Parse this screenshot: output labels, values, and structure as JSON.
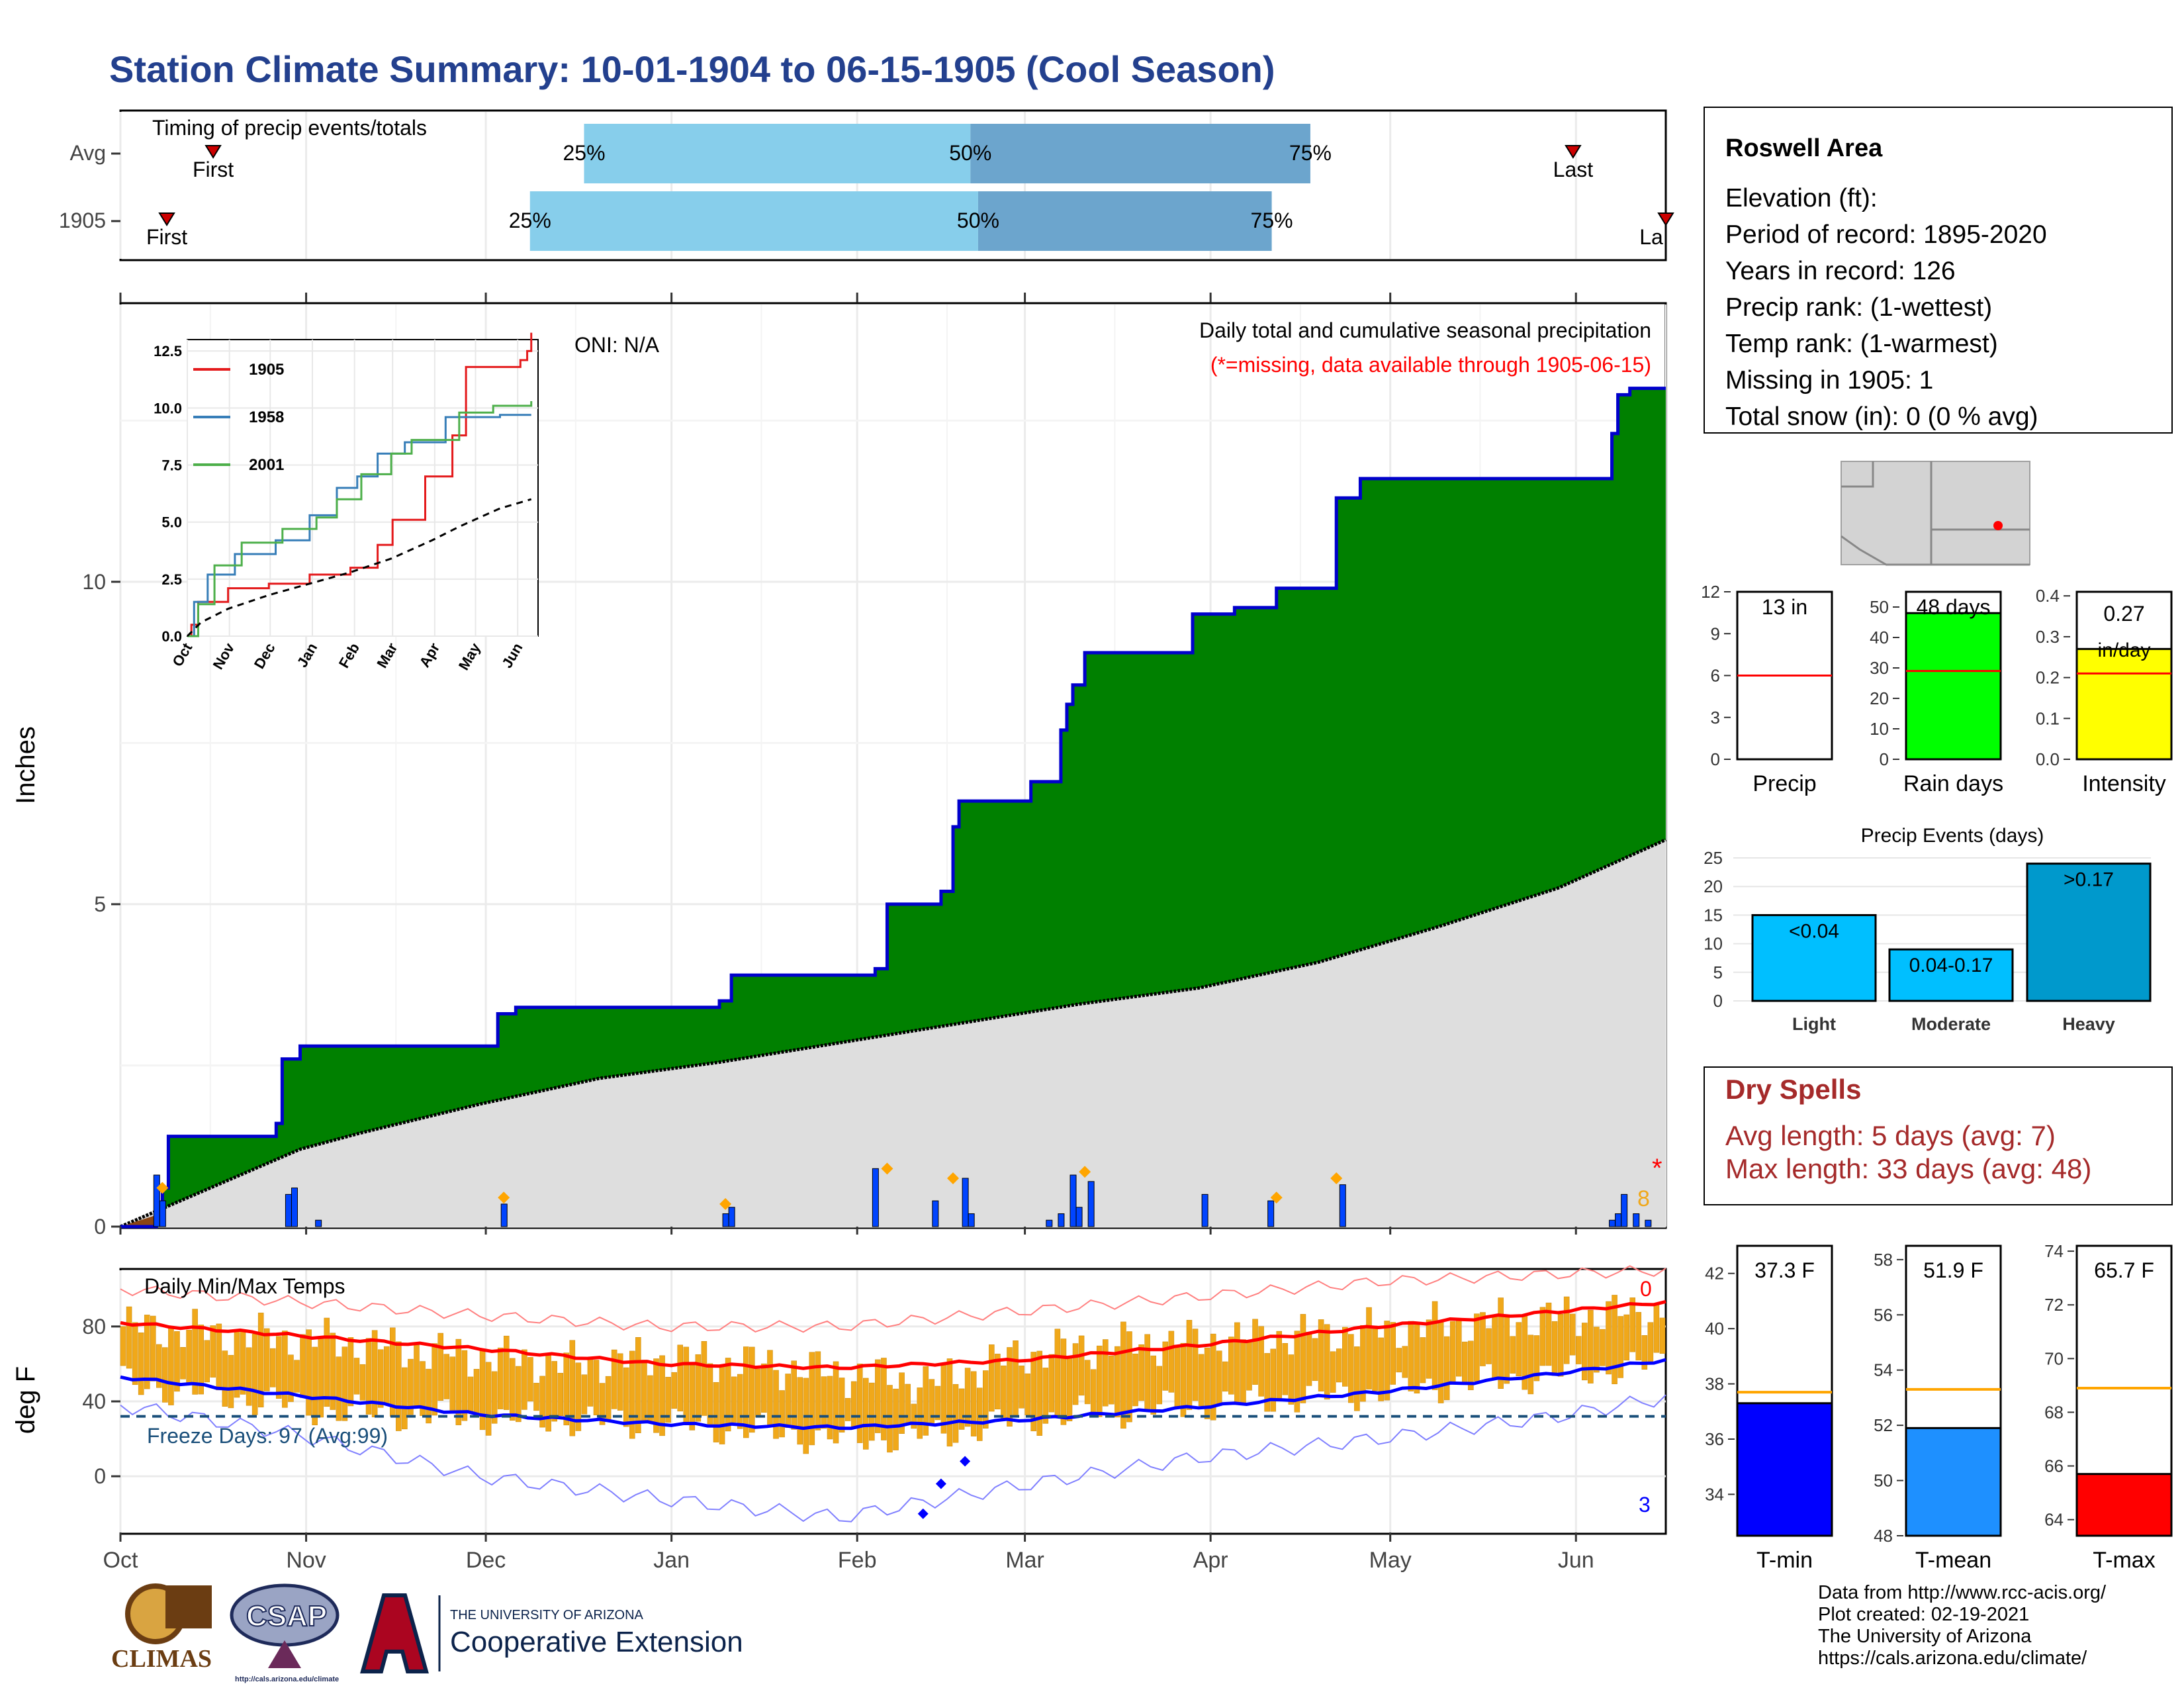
{
  "title": "Station Climate Summary: 10-01-1904 to 06-15-1905 (Cool Season)",
  "colors": {
    "title": "#23408e",
    "green": "#008000",
    "cum_line": "#0000cc",
    "avg_fill": "#dedede",
    "bar_light": "#87ceeb",
    "bar_dark": "#6ca5cd",
    "tmin_blue": "#0000ff",
    "tmean_blue": "#1e90ff",
    "tmax_red": "#ff0000",
    "temp_bar": "#f0a81a",
    "dry_spell": "#a52a2a",
    "rain_days_green": "#00ff00",
    "intensity_yellow": "#ffff00",
    "events_blue": "#00bfff",
    "events_heavy": "#0099cc",
    "freeze_line": "#1a4f7a"
  },
  "timing": {
    "label": "Timing of precip events/totals",
    "rows": [
      {
        "name": "Avg",
        "first_label": "First",
        "last_label": "Last",
        "q25": "25%",
        "q50": "50%",
        "q75": "75%",
        "first": 0.06,
        "last": 0.94,
        "p25": 0.3,
        "p50": 0.55,
        "p75": 0.77
      },
      {
        "name": "1905",
        "first_label": "First",
        "last_label": "La",
        "q25": "25%",
        "q50": "50%",
        "q75": "75%",
        "first": 0.03,
        "last": 1.0,
        "p25": 0.265,
        "p50": 0.555,
        "p75": 0.745
      }
    ]
  },
  "info_box": {
    "station": "Roswell Area",
    "lines": [
      "Elevation (ft):",
      "Period of record: 1895-2020",
      "Years in record: 126",
      "Precip rank:  (1-wettest)",
      "Temp rank:  (1-warmest)",
      "Missing in 1905: 1",
      "Total snow (in): 0 (0 % avg)"
    ]
  },
  "summary_bars": [
    {
      "label": "Precip",
      "value_text": "13 in",
      "value": 13,
      "avg": 6,
      "ymax": 12,
      "ticks": [
        "0",
        "3",
        "6",
        "9",
        "12"
      ],
      "color": "#ffffff"
    },
    {
      "label": "Rain days",
      "value_text": "48 days",
      "value": 48,
      "avg": 29,
      "ymax": 55,
      "ticks": [
        "0",
        "10",
        "20",
        "30",
        "40",
        "50"
      ],
      "color": "#00ff00"
    },
    {
      "label": "Intensity",
      "value_text": "0.27",
      "value_text2": "in/day",
      "value": 0.27,
      "avg": 0.21,
      "ymax": 0.41,
      "ticks": [
        "0.0",
        "0.1",
        "0.2",
        "0.3",
        "0.4"
      ],
      "color": "#ffff00"
    }
  ],
  "precip_events": {
    "title": "Precip Events (days)",
    "ticks": [
      "0",
      "5",
      "10",
      "15",
      "20",
      "25"
    ],
    "bars": [
      {
        "label": "Light",
        "text": "<0.04",
        "value": 15,
        "color": "#00bfff"
      },
      {
        "label": "Moderate",
        "text": "0.04-0.17",
        "value": 9,
        "color": "#00bfff"
      },
      {
        "label": "Heavy",
        "text": ">0.17",
        "value": 24,
        "color": "#0099cc"
      }
    ]
  },
  "dry_spells": {
    "title": "Dry Spells",
    "avg_line": "Avg length: 5 days (avg: 7)",
    "max_line": "Max length: 33 days (avg: 48)"
  },
  "temp_bars": [
    {
      "label": "T-min",
      "value_text": "37.3 F",
      "value": 37.3,
      "avg": 37.7,
      "ymin": 32.5,
      "ymax": 43,
      "ticks": [
        "34",
        "36",
        "38",
        "40",
        "42"
      ],
      "tickvals": [
        34,
        36,
        38,
        40,
        42
      ],
      "color": "#0000ff"
    },
    {
      "label": "T-mean",
      "value_text": "51.9 F",
      "value": 51.9,
      "avg": 53.3,
      "ymin": 48,
      "ymax": 58.5,
      "ticks": [
        "48",
        "50",
        "52",
        "54",
        "56",
        "58"
      ],
      "tickvals": [
        48,
        50,
        52,
        54,
        56,
        58
      ],
      "color": "#1e90ff"
    },
    {
      "label": "T-max",
      "value_text": "65.7 F",
      "value": 65.7,
      "avg": 68.9,
      "ymin": 63.4,
      "ymax": 74.2,
      "ticks": [
        "64",
        "66",
        "68",
        "70",
        "72",
        "74"
      ],
      "tickvals": [
        64,
        66,
        68,
        70,
        72,
        74
      ],
      "color": "#ff0000"
    }
  ],
  "chart_data": [
    {
      "type": "area",
      "title": "Daily total and cumulative seasonal precipitation",
      "subtitle": "(*=missing, data available through 1905-06-15)",
      "annotation": "ONI: N/A",
      "ylabel": "Inches",
      "ylim": [
        0,
        14.3
      ],
      "yticks": [
        0,
        5,
        10
      ],
      "missing_marker": "*",
      "missing_count_label": "8",
      "x_days": 258,
      "cumulative_1905": [
        [
          0,
          0.0
        ],
        [
          6,
          0.1
        ],
        [
          7,
          0.6
        ],
        [
          8,
          1.4
        ],
        [
          26,
          1.6
        ],
        [
          27,
          2.6
        ],
        [
          30,
          2.8
        ],
        [
          63,
          3.3
        ],
        [
          66,
          3.4
        ],
        [
          72,
          3.4
        ],
        [
          100,
          3.5
        ],
        [
          102,
          3.9
        ],
        [
          126,
          4.0
        ],
        [
          128,
          5.0
        ],
        [
          137,
          5.2
        ],
        [
          139,
          6.2
        ],
        [
          140,
          6.6
        ],
        [
          152,
          6.9
        ],
        [
          157,
          7.7
        ],
        [
          158,
          8.1
        ],
        [
          159,
          8.4
        ],
        [
          161,
          8.9
        ],
        [
          179,
          9.5
        ],
        [
          186,
          9.6
        ],
        [
          193,
          9.9
        ],
        [
          203,
          11.3
        ],
        [
          207,
          11.6
        ],
        [
          238,
          11.6
        ],
        [
          249,
          12.3
        ],
        [
          250,
          12.9
        ],
        [
          252,
          13.0
        ],
        [
          254,
          13.0
        ],
        [
          258,
          13.0
        ]
      ],
      "cumulative_avg": [
        [
          0,
          0.0
        ],
        [
          10,
          0.4
        ],
        [
          20,
          0.8
        ],
        [
          30,
          1.2
        ],
        [
          40,
          1.45
        ],
        [
          60,
          1.9
        ],
        [
          80,
          2.3
        ],
        [
          100,
          2.55
        ],
        [
          120,
          2.85
        ],
        [
          140,
          3.15
        ],
        [
          160,
          3.45
        ],
        [
          180,
          3.7
        ],
        [
          200,
          4.1
        ],
        [
          220,
          4.65
        ],
        [
          240,
          5.25
        ],
        [
          258,
          6.0
        ]
      ],
      "daily_bars": [
        [
          6,
          0.8
        ],
        [
          7,
          0.4
        ],
        [
          28,
          0.5
        ],
        [
          29,
          0.6
        ],
        [
          33,
          0.1
        ],
        [
          64,
          0.35
        ],
        [
          101,
          0.2
        ],
        [
          102,
          0.3
        ],
        [
          126,
          0.9
        ],
        [
          136,
          0.4
        ],
        [
          141,
          0.75
        ],
        [
          142,
          0.2
        ],
        [
          155,
          0.1
        ],
        [
          157,
          0.2
        ],
        [
          159,
          0.8
        ],
        [
          160,
          0.3
        ],
        [
          162,
          0.7
        ],
        [
          181,
          0.5
        ],
        [
          192,
          0.4
        ],
        [
          204,
          0.65
        ],
        [
          249,
          0.1
        ],
        [
          250,
          0.2
        ],
        [
          251,
          0.5
        ],
        [
          253,
          0.2
        ],
        [
          255,
          0.1
        ]
      ],
      "orange_markers": [
        [
          7,
          0.6
        ],
        [
          64,
          0.45
        ],
        [
          101,
          0.35
        ],
        [
          128,
          0.9
        ],
        [
          139,
          0.75
        ],
        [
          161,
          0.85
        ],
        [
          193,
          0.45
        ],
        [
          203,
          0.75
        ]
      ]
    },
    {
      "type": "line",
      "title": "",
      "series": [
        {
          "name": "1905",
          "color": "#e41a1c",
          "values": [
            [
              0,
              0.0
            ],
            [
              3,
              0.5
            ],
            [
              8,
              1.5
            ],
            [
              30,
              2.1
            ],
            [
              60,
              2.3
            ],
            [
              90,
              2.7
            ],
            [
              120,
              3.0
            ],
            [
              140,
              4.0
            ],
            [
              151,
              5.1
            ],
            [
              175,
              7.0
            ],
            [
              195,
              8.8
            ],
            [
              205,
              11.8
            ],
            [
              245,
              12.1
            ],
            [
              250,
              12.5
            ],
            [
              253,
              13.3
            ]
          ]
        },
        {
          "name": "1958",
          "color": "#377eb8",
          "values": [
            [
              0,
              0.0
            ],
            [
              5,
              1.5
            ],
            [
              15,
              2.7
            ],
            [
              35,
              3.6
            ],
            [
              65,
              4.2
            ],
            [
              90,
              5.3
            ],
            [
              110,
              6.5
            ],
            [
              125,
              7.0
            ],
            [
              140,
              8.0
            ],
            [
              160,
              8.5
            ],
            [
              190,
              9.6
            ],
            [
              230,
              9.7
            ],
            [
              253,
              9.7
            ]
          ]
        },
        {
          "name": "2001",
          "color": "#4daf4a",
          "values": [
            [
              0,
              0.0
            ],
            [
              8,
              1.4
            ],
            [
              20,
              3.1
            ],
            [
              40,
              4.1
            ],
            [
              70,
              4.7
            ],
            [
              95,
              5.2
            ],
            [
              110,
              6.0
            ],
            [
              128,
              7.1
            ],
            [
              150,
              8.0
            ],
            [
              165,
              8.6
            ],
            [
              200,
              9.8
            ],
            [
              225,
              10.1
            ],
            [
              253,
              10.3
            ]
          ]
        },
        {
          "name": "",
          "color": "#000000",
          "dashed": true,
          "values": [
            [
              0,
              0.0
            ],
            [
              10,
              0.6
            ],
            [
              30,
              1.2
            ],
            [
              60,
              1.8
            ],
            [
              90,
              2.3
            ],
            [
              120,
              2.8
            ],
            [
              150,
              3.4
            ],
            [
              180,
              4.2
            ],
            [
              200,
              4.8
            ],
            [
              230,
              5.6
            ],
            [
              253,
              6.0
            ]
          ]
        }
      ],
      "ylim": [
        0,
        13.0
      ],
      "yticks": [
        "0.0",
        "2.5",
        "5.0",
        "7.5",
        "10.0",
        "12.5"
      ],
      "xticks": [
        "Oct",
        "Nov",
        "Dec",
        "Jan",
        "Feb",
        "Mar",
        "Apr",
        "May",
        "Jun"
      ]
    },
    {
      "type": "bar",
      "title": "Daily Min/Max Temps",
      "ylabel": "deg F",
      "ylim": [
        -30,
        110
      ],
      "yticks": [
        0,
        40,
        80
      ],
      "freeze_label": "Freeze Days: 97 (Avg:99)",
      "freeze_level": 32,
      "hot_count": "0",
      "cold_count": "3",
      "avg_max": [
        [
          0,
          82
        ],
        [
          30,
          75
        ],
        [
          60,
          68
        ],
        [
          90,
          60
        ],
        [
          120,
          58
        ],
        [
          150,
          62
        ],
        [
          180,
          70
        ],
        [
          210,
          80
        ],
        [
          240,
          88
        ],
        [
          258,
          93
        ]
      ],
      "avg_min": [
        [
          0,
          53
        ],
        [
          30,
          43
        ],
        [
          60,
          33
        ],
        [
          90,
          28
        ],
        [
          120,
          26
        ],
        [
          150,
          30
        ],
        [
          180,
          37
        ],
        [
          210,
          45
        ],
        [
          240,
          55
        ],
        [
          258,
          62
        ]
      ],
      "record_max": [
        [
          0,
          100
        ],
        [
          30,
          93
        ],
        [
          60,
          86
        ],
        [
          90,
          80
        ],
        [
          120,
          80
        ],
        [
          150,
          88
        ],
        [
          180,
          96
        ],
        [
          210,
          104
        ],
        [
          240,
          108
        ],
        [
          258,
          110
        ]
      ],
      "record_min": [
        [
          0,
          38
        ],
        [
          30,
          22
        ],
        [
          60,
          0
        ],
        [
          90,
          -12
        ],
        [
          120,
          -22
        ],
        [
          150,
          -5
        ],
        [
          180,
          10
        ],
        [
          210,
          20
        ],
        [
          240,
          32
        ],
        [
          258,
          42
        ]
      ],
      "daily_max": [
        [
          0,
          80
        ],
        [
          20,
          75
        ],
        [
          35,
          72
        ],
        [
          55,
          65
        ],
        [
          75,
          60
        ],
        [
          90,
          63
        ],
        [
          105,
          60
        ],
        [
          120,
          55
        ],
        [
          135,
          50
        ],
        [
          150,
          65
        ],
        [
          165,
          70
        ],
        [
          180,
          72
        ],
        [
          195,
          75
        ],
        [
          210,
          78
        ],
        [
          225,
          82
        ],
        [
          240,
          85
        ],
        [
          258,
          88
        ]
      ],
      "daily_min": [
        [
          0,
          50
        ],
        [
          20,
          42
        ],
        [
          35,
          35
        ],
        [
          55,
          32
        ],
        [
          75,
          30
        ],
        [
          90,
          28
        ],
        [
          105,
          25
        ],
        [
          120,
          20
        ],
        [
          135,
          22
        ],
        [
          150,
          30
        ],
        [
          165,
          35
        ],
        [
          180,
          38
        ],
        [
          195,
          42
        ],
        [
          210,
          45
        ],
        [
          225,
          50
        ],
        [
          240,
          55
        ],
        [
          258,
          60
        ]
      ],
      "cold_markers": [
        [
          134,
          -20
        ],
        [
          137,
          -4
        ],
        [
          141,
          8
        ]
      ],
      "xticks": [
        "Oct",
        "Nov",
        "Dec",
        "Jan",
        "Feb",
        "Mar",
        "Apr",
        "May",
        "Jun"
      ]
    }
  ],
  "logos": {
    "climas": "CLIMAS",
    "csap": "CSAP",
    "csap_url": "http://cals.arizona.edu/climate",
    "ua_small": "THE UNIVERSITY OF ARIZONA",
    "ua_big": "Cooperative Extension"
  },
  "footer": [
    "Data from http://www.rcc-acis.org/",
    "Plot created: 02-19-2021",
    "The University of Arizona",
    "https://cals.arizona.edu/climate/"
  ]
}
